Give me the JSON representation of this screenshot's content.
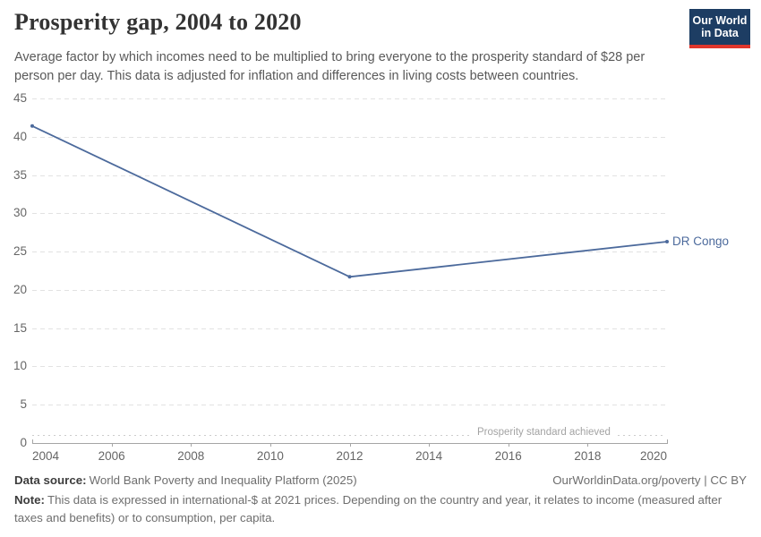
{
  "header": {
    "title": "Prosperity gap, 2004 to 2020",
    "subtitle": "Average factor by which incomes need to be multiplied to bring everyone to the prosperity standard of $28 per person per day. This data is adjusted for inflation and differences in living costs between countries.",
    "logo": {
      "line1": "Our World",
      "line2": "in Data",
      "bg_color": "#1d3d63",
      "bar_color": "#e0362c"
    }
  },
  "chart_data": {
    "type": "line",
    "title": "Prosperity gap, 2004 to 2020",
    "x": [
      2004,
      2012,
      2020
    ],
    "series": [
      {
        "name": "DR Congo",
        "values": [
          41.4,
          21.7,
          26.3
        ],
        "color": "#4c6a9c"
      }
    ],
    "xlim": [
      2004,
      2020
    ],
    "ylim": [
      0,
      45
    ],
    "x_ticks": [
      2004,
      2006,
      2008,
      2010,
      2012,
      2014,
      2016,
      2018,
      2020
    ],
    "y_ticks": [
      0,
      5,
      10,
      15,
      20,
      25,
      30,
      35,
      40,
      45
    ],
    "grid": "horizontal dashed",
    "legend_position": "end-of-line label",
    "annotation": {
      "label": "Prosperity standard achieved",
      "value": 1
    },
    "colors": {
      "line": "#4c6a9c",
      "gridline": "#e2e2e2",
      "axis": "#a5a5a5",
      "tick_label": "#666666"
    }
  },
  "footer": {
    "data_source_label": "Data source:",
    "data_source": "World Bank Poverty and Inequality Platform (2025)",
    "link": "OurWorldinData.org/poverty | CC BY",
    "note_label": "Note:",
    "note": "This data is expressed in international-$ at 2021 prices. Depending on the country and year, it relates to income (measured after taxes and benefits) or to consumption, per capita."
  }
}
